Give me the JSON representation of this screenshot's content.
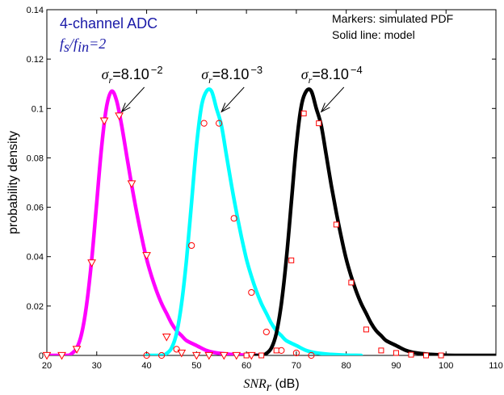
{
  "chart_data": {
    "type": "line",
    "xlim": [
      20,
      110
    ],
    "ylim": [
      0,
      0.14
    ],
    "x_ticks": [
      "20",
      "30",
      "40",
      "50",
      "60",
      "70",
      "80",
      "90",
      "100",
      "110"
    ],
    "y_ticks": [
      "0",
      "0.02",
      "0.04",
      "0.06",
      "0.08",
      "0.1",
      "0.12",
      "0.14"
    ],
    "ylabel": "probability density",
    "xlabel_symbol": "SNR",
    "xlabel_subscript": "r",
    "xlabel_unit": " (dB)",
    "title": "4-channel ADC",
    "ratio_label": {
      "fs": "f",
      "fs_sub": "s",
      "slash": "/",
      "fin": "f",
      "fin_sub": "in",
      "value": "=2"
    },
    "notes": [
      "Markers: simulated PDF",
      "Solid line: model"
    ],
    "grid": false,
    "series": [
      {
        "color": "#ff00ff",
        "marker": "triangle-down",
        "annotation": {
          "sigma": "σ",
          "sub": "r",
          "text": "=8.10",
          "exponent": "−2",
          "tip": [
            35,
            0.097
          ]
        },
        "model": [
          [
            20,
            0
          ],
          [
            24,
            0
          ],
          [
            25,
            0.0008
          ],
          [
            26,
            0.003
          ],
          [
            27,
            0.009
          ],
          [
            28,
            0.021
          ],
          [
            29,
            0.039
          ],
          [
            30,
            0.062
          ],
          [
            31,
            0.085
          ],
          [
            32,
            0.101
          ],
          [
            33,
            0.107
          ],
          [
            34,
            0.103
          ],
          [
            35,
            0.093
          ],
          [
            36,
            0.081
          ],
          [
            37,
            0.069
          ],
          [
            38,
            0.058
          ],
          [
            39,
            0.048
          ],
          [
            40,
            0.039
          ],
          [
            41,
            0.032
          ],
          [
            42,
            0.026
          ],
          [
            43,
            0.021
          ],
          [
            44,
            0.017
          ],
          [
            45,
            0.013
          ],
          [
            46,
            0.01
          ],
          [
            47,
            0.008
          ],
          [
            48,
            0.006
          ],
          [
            50,
            0.004
          ],
          [
            52,
            0.002
          ],
          [
            54,
            0.001
          ],
          [
            57,
            0.0004
          ],
          [
            60,
            0.0001
          ],
          [
            63,
            0
          ]
        ],
        "markers": [
          [
            20,
            0
          ],
          [
            23,
            0
          ],
          [
            26,
            0.0025
          ],
          [
            29,
            0.0375
          ],
          [
            31.5,
            0.095
          ],
          [
            34.5,
            0.097
          ],
          [
            37,
            0.0695
          ],
          [
            40,
            0.0405
          ],
          [
            44,
            0.0075
          ],
          [
            47,
            0.001
          ],
          [
            50,
            0
          ],
          [
            52.5,
            0
          ],
          [
            55.5,
            0
          ],
          [
            58,
            0
          ],
          [
            61,
            0
          ]
        ]
      },
      {
        "color": "#00ffff",
        "marker": "circle",
        "annotation": {
          "sigma": "σ",
          "sub": "r",
          "text": "=8.10",
          "exponent": "−3",
          "tip": [
            55,
            0.097
          ]
        },
        "model": [
          [
            40,
            0
          ],
          [
            43,
            0
          ],
          [
            44,
            0.0008
          ],
          [
            45,
            0.003
          ],
          [
            46,
            0.009
          ],
          [
            47,
            0.021
          ],
          [
            48,
            0.039
          ],
          [
            49,
            0.062
          ],
          [
            50,
            0.085
          ],
          [
            51,
            0.101
          ],
          [
            52,
            0.107
          ],
          [
            53,
            0.107
          ],
          [
            54,
            0.1
          ],
          [
            55,
            0.093
          ],
          [
            56,
            0.081
          ],
          [
            57,
            0.069
          ],
          [
            58,
            0.058
          ],
          [
            59,
            0.048
          ],
          [
            60,
            0.039
          ],
          [
            61,
            0.032
          ],
          [
            62,
            0.026
          ],
          [
            63,
            0.021
          ],
          [
            64,
            0.017
          ],
          [
            65,
            0.013
          ],
          [
            66,
            0.01
          ],
          [
            67,
            0.008
          ],
          [
            68,
            0.006
          ],
          [
            70,
            0.004
          ],
          [
            72,
            0.002
          ],
          [
            74,
            0.001
          ],
          [
            77,
            0.0004
          ],
          [
            80,
            0.0001
          ],
          [
            83,
            0
          ]
        ],
        "markers": [
          [
            40,
            0
          ],
          [
            43,
            0
          ],
          [
            46,
            0.0025
          ],
          [
            49,
            0.0445
          ],
          [
            51.5,
            0.094
          ],
          [
            54.5,
            0.094
          ],
          [
            57.5,
            0.0555
          ],
          [
            61,
            0.0255
          ],
          [
            64,
            0.0095
          ],
          [
            67,
            0.002
          ],
          [
            70,
            0.001
          ],
          [
            73,
            0
          ]
        ]
      },
      {
        "color": "#000000",
        "marker": "square",
        "annotation": {
          "sigma": "σ",
          "sub": "r",
          "text": "=8.10",
          "exponent": "−4",
          "tip": [
            75,
            0.097
          ]
        },
        "model": [
          [
            60,
            0
          ],
          [
            63,
            0
          ],
          [
            64,
            0.0008
          ],
          [
            65,
            0.003
          ],
          [
            66,
            0.009
          ],
          [
            67,
            0.021
          ],
          [
            68,
            0.039
          ],
          [
            69,
            0.062
          ],
          [
            70,
            0.085
          ],
          [
            71,
            0.101
          ],
          [
            72,
            0.107
          ],
          [
            73,
            0.107
          ],
          [
            74,
            0.1
          ],
          [
            75,
            0.093
          ],
          [
            76,
            0.081
          ],
          [
            77,
            0.069
          ],
          [
            78,
            0.058
          ],
          [
            79,
            0.048
          ],
          [
            80,
            0.039
          ],
          [
            81,
            0.032
          ],
          [
            82,
            0.026
          ],
          [
            83,
            0.021
          ],
          [
            84,
            0.017
          ],
          [
            85,
            0.013
          ],
          [
            86,
            0.01
          ],
          [
            87,
            0.008
          ],
          [
            88,
            0.006
          ],
          [
            90,
            0.004
          ],
          [
            92,
            0.002
          ],
          [
            94,
            0.001
          ],
          [
            97,
            0.0004
          ],
          [
            100,
            0.0001
          ],
          [
            103,
            0
          ],
          [
            110,
            0
          ]
        ],
        "markers": [
          [
            60,
            0
          ],
          [
            63,
            0
          ],
          [
            66,
            0.002
          ],
          [
            69,
            0.0385
          ],
          [
            71.5,
            0.098
          ],
          [
            74.5,
            0.094
          ],
          [
            78,
            0.053
          ],
          [
            81,
            0.0295
          ],
          [
            84,
            0.0105
          ],
          [
            87,
            0.002
          ],
          [
            90,
            0.001
          ],
          [
            93,
            0.0003
          ],
          [
            96,
            0
          ],
          [
            99,
            0
          ]
        ]
      }
    ]
  }
}
